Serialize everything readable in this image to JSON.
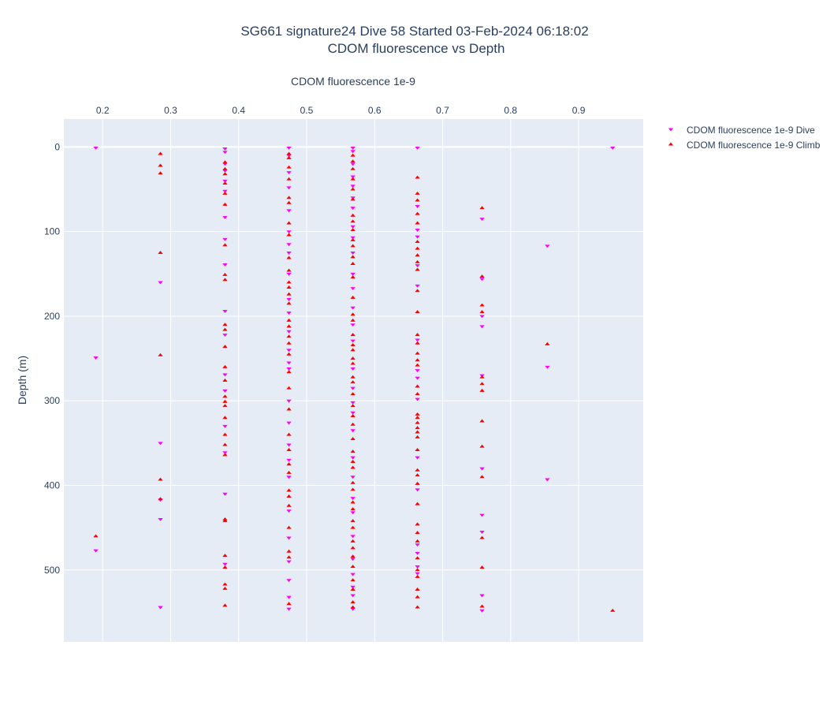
{
  "chart_data": {
    "type": "scatter",
    "title": "SG661 signature24 Dive 58 Started 03-Feb-2024 06:18:02",
    "subtitle": "CDOM fluorescence vs Depth",
    "xlabel": "CDOM fluorescence 1e-9",
    "ylabel": "Depth (m)",
    "xlim": [
      0.143,
      0.995
    ],
    "ylim": [
      585,
      -33
    ],
    "x_ticks": [
      0.2,
      0.3,
      0.4,
      0.5,
      0.6,
      0.7,
      0.8,
      0.9
    ],
    "x_tick_labels": [
      "0.2",
      "0.3",
      "0.4",
      "0.5",
      "0.6",
      "0.7",
      "0.8",
      "0.9"
    ],
    "y_ticks": [
      0,
      100,
      200,
      300,
      400,
      500
    ],
    "y_tick_labels": [
      "0",
      "100",
      "200",
      "300",
      "400",
      "500"
    ],
    "x_axis_position": "top",
    "y_reversed": true,
    "grid": true,
    "legend_position": "top-right",
    "background_color": "#e5ecf6",
    "series": [
      {
        "name": "CDOM fluorescence 1e-9 Dive",
        "marker": "triangle-down",
        "color": "#ff00ff",
        "points": [
          [
            0.19,
            1
          ],
          [
            0.19,
            249
          ],
          [
            0.19,
            477
          ],
          [
            0.285,
            160
          ],
          [
            0.285,
            350
          ],
          [
            0.285,
            417
          ],
          [
            0.285,
            440
          ],
          [
            0.285,
            544
          ],
          [
            0.38,
            2
          ],
          [
            0.38,
            6
          ],
          [
            0.38,
            20
          ],
          [
            0.38,
            28
          ],
          [
            0.38,
            40
          ],
          [
            0.38,
            52
          ],
          [
            0.38,
            83
          ],
          [
            0.38,
            109
          ],
          [
            0.38,
            139
          ],
          [
            0.38,
            194
          ],
          [
            0.38,
            222
          ],
          [
            0.38,
            269
          ],
          [
            0.38,
            288
          ],
          [
            0.38,
            330
          ],
          [
            0.38,
            361
          ],
          [
            0.38,
            410
          ],
          [
            0.38,
            493
          ],
          [
            0.474,
            1
          ],
          [
            0.474,
            10
          ],
          [
            0.474,
            30
          ],
          [
            0.474,
            48
          ],
          [
            0.474,
            75
          ],
          [
            0.474,
            100
          ],
          [
            0.474,
            115
          ],
          [
            0.474,
            125
          ],
          [
            0.474,
            150
          ],
          [
            0.474,
            180
          ],
          [
            0.474,
            196
          ],
          [
            0.474,
            218
          ],
          [
            0.474,
            240
          ],
          [
            0.474,
            255
          ],
          [
            0.474,
            262
          ],
          [
            0.474,
            300
          ],
          [
            0.474,
            326
          ],
          [
            0.474,
            352
          ],
          [
            0.474,
            370
          ],
          [
            0.474,
            390
          ],
          [
            0.474,
            430
          ],
          [
            0.474,
            462
          ],
          [
            0.474,
            490
          ],
          [
            0.474,
            512
          ],
          [
            0.474,
            532
          ],
          [
            0.474,
            546
          ],
          [
            0.568,
            1
          ],
          [
            0.568,
            5
          ],
          [
            0.568,
            20
          ],
          [
            0.568,
            35
          ],
          [
            0.568,
            46
          ],
          [
            0.568,
            60
          ],
          [
            0.568,
            72
          ],
          [
            0.568,
            94
          ],
          [
            0.568,
            107
          ],
          [
            0.568,
            125
          ],
          [
            0.568,
            150
          ],
          [
            0.568,
            167
          ],
          [
            0.568,
            190
          ],
          [
            0.568,
            210
          ],
          [
            0.568,
            229
          ],
          [
            0.568,
            262
          ],
          [
            0.568,
            285
          ],
          [
            0.568,
            302
          ],
          [
            0.568,
            314
          ],
          [
            0.568,
            335
          ],
          [
            0.568,
            367
          ],
          [
            0.568,
            390
          ],
          [
            0.568,
            415
          ],
          [
            0.568,
            432
          ],
          [
            0.568,
            460
          ],
          [
            0.568,
            487
          ],
          [
            0.568,
            505
          ],
          [
            0.568,
            520
          ],
          [
            0.568,
            530
          ],
          [
            0.568,
            546
          ],
          [
            0.663,
            1
          ],
          [
            0.663,
            70
          ],
          [
            0.663,
            98
          ],
          [
            0.663,
            106
          ],
          [
            0.663,
            140
          ],
          [
            0.663,
            164
          ],
          [
            0.663,
            228
          ],
          [
            0.663,
            264
          ],
          [
            0.663,
            273
          ],
          [
            0.663,
            298
          ],
          [
            0.663,
            367
          ],
          [
            0.663,
            405
          ],
          [
            0.663,
            470
          ],
          [
            0.663,
            480
          ],
          [
            0.663,
            496
          ],
          [
            0.663,
            504
          ],
          [
            0.758,
            85
          ],
          [
            0.758,
            156
          ],
          [
            0.758,
            200
          ],
          [
            0.758,
            212
          ],
          [
            0.758,
            270
          ],
          [
            0.758,
            380
          ],
          [
            0.758,
            435
          ],
          [
            0.758,
            455
          ],
          [
            0.758,
            530
          ],
          [
            0.758,
            548
          ],
          [
            0.854,
            117
          ],
          [
            0.854,
            260
          ],
          [
            0.854,
            393
          ],
          [
            0.95,
            1
          ]
        ]
      },
      {
        "name": "CDOM fluorescence 1e-9 Climb",
        "marker": "triangle-up",
        "color": "#ff0000",
        "points": [
          [
            0.19,
            460
          ],
          [
            0.285,
            8
          ],
          [
            0.285,
            22
          ],
          [
            0.285,
            31
          ],
          [
            0.285,
            125
          ],
          [
            0.285,
            246
          ],
          [
            0.285,
            393
          ],
          [
            0.285,
            416
          ],
          [
            0.38,
            18
          ],
          [
            0.38,
            26
          ],
          [
            0.38,
            32
          ],
          [
            0.38,
            43
          ],
          [
            0.38,
            55
          ],
          [
            0.38,
            68
          ],
          [
            0.38,
            116
          ],
          [
            0.38,
            151
          ],
          [
            0.38,
            157
          ],
          [
            0.38,
            210
          ],
          [
            0.38,
            216
          ],
          [
            0.38,
            236
          ],
          [
            0.38,
            260
          ],
          [
            0.38,
            276
          ],
          [
            0.38,
            295
          ],
          [
            0.38,
            301
          ],
          [
            0.38,
            306
          ],
          [
            0.38,
            320
          ],
          [
            0.38,
            340
          ],
          [
            0.38,
            352
          ],
          [
            0.38,
            364
          ],
          [
            0.38,
            440
          ],
          [
            0.38,
            442
          ],
          [
            0.38,
            483
          ],
          [
            0.38,
            497
          ],
          [
            0.38,
            517
          ],
          [
            0.38,
            522
          ],
          [
            0.38,
            542
          ],
          [
            0.474,
            8
          ],
          [
            0.474,
            13
          ],
          [
            0.474,
            24
          ],
          [
            0.474,
            38
          ],
          [
            0.474,
            60
          ],
          [
            0.474,
            66
          ],
          [
            0.474,
            90
          ],
          [
            0.474,
            104
          ],
          [
            0.474,
            131
          ],
          [
            0.474,
            146
          ],
          [
            0.474,
            160
          ],
          [
            0.474,
            166
          ],
          [
            0.474,
            174
          ],
          [
            0.474,
            185
          ],
          [
            0.474,
            205
          ],
          [
            0.474,
            212
          ],
          [
            0.474,
            224
          ],
          [
            0.474,
            232
          ],
          [
            0.474,
            245
          ],
          [
            0.474,
            266
          ],
          [
            0.474,
            285
          ],
          [
            0.474,
            310
          ],
          [
            0.474,
            340
          ],
          [
            0.474,
            358
          ],
          [
            0.474,
            375
          ],
          [
            0.474,
            385
          ],
          [
            0.474,
            406
          ],
          [
            0.474,
            413
          ],
          [
            0.474,
            424
          ],
          [
            0.474,
            450
          ],
          [
            0.474,
            478
          ],
          [
            0.474,
            485
          ],
          [
            0.474,
            540
          ],
          [
            0.568,
            10
          ],
          [
            0.568,
            17
          ],
          [
            0.568,
            26
          ],
          [
            0.568,
            38
          ],
          [
            0.568,
            50
          ],
          [
            0.568,
            62
          ],
          [
            0.568,
            81
          ],
          [
            0.568,
            88
          ],
          [
            0.568,
            98
          ],
          [
            0.568,
            110
          ],
          [
            0.568,
            117
          ],
          [
            0.568,
            130
          ],
          [
            0.568,
            138
          ],
          [
            0.568,
            154
          ],
          [
            0.568,
            178
          ],
          [
            0.568,
            198
          ],
          [
            0.568,
            205
          ],
          [
            0.568,
            222
          ],
          [
            0.568,
            234
          ],
          [
            0.568,
            240
          ],
          [
            0.568,
            250
          ],
          [
            0.568,
            256
          ],
          [
            0.568,
            272
          ],
          [
            0.568,
            278
          ],
          [
            0.568,
            292
          ],
          [
            0.568,
            306
          ],
          [
            0.568,
            318
          ],
          [
            0.568,
            328
          ],
          [
            0.568,
            345
          ],
          [
            0.568,
            360
          ],
          [
            0.568,
            372
          ],
          [
            0.568,
            379
          ],
          [
            0.568,
            397
          ],
          [
            0.568,
            405
          ],
          [
            0.568,
            420
          ],
          [
            0.568,
            428
          ],
          [
            0.568,
            442
          ],
          [
            0.568,
            450
          ],
          [
            0.568,
            466
          ],
          [
            0.568,
            474
          ],
          [
            0.568,
            484
          ],
          [
            0.568,
            496
          ],
          [
            0.568,
            512
          ],
          [
            0.568,
            523
          ],
          [
            0.568,
            538
          ],
          [
            0.568,
            544
          ],
          [
            0.663,
            36
          ],
          [
            0.663,
            55
          ],
          [
            0.663,
            63
          ],
          [
            0.663,
            79
          ],
          [
            0.663,
            90
          ],
          [
            0.663,
            112
          ],
          [
            0.663,
            120
          ],
          [
            0.663,
            128
          ],
          [
            0.663,
            136
          ],
          [
            0.663,
            145
          ],
          [
            0.663,
            170
          ],
          [
            0.663,
            195
          ],
          [
            0.663,
            222
          ],
          [
            0.663,
            232
          ],
          [
            0.663,
            244
          ],
          [
            0.663,
            252
          ],
          [
            0.663,
            258
          ],
          [
            0.663,
            283
          ],
          [
            0.663,
            292
          ],
          [
            0.663,
            316
          ],
          [
            0.663,
            320
          ],
          [
            0.663,
            326
          ],
          [
            0.663,
            332
          ],
          [
            0.663,
            337
          ],
          [
            0.663,
            343
          ],
          [
            0.663,
            358
          ],
          [
            0.663,
            382
          ],
          [
            0.663,
            388
          ],
          [
            0.663,
            398
          ],
          [
            0.663,
            422
          ],
          [
            0.663,
            446
          ],
          [
            0.663,
            456
          ],
          [
            0.663,
            466
          ],
          [
            0.663,
            486
          ],
          [
            0.663,
            500
          ],
          [
            0.663,
            508
          ],
          [
            0.663,
            523
          ],
          [
            0.663,
            532
          ],
          [
            0.663,
            544
          ],
          [
            0.758,
            72
          ],
          [
            0.758,
            153
          ],
          [
            0.758,
            187
          ],
          [
            0.758,
            195
          ],
          [
            0.758,
            272
          ],
          [
            0.758,
            280
          ],
          [
            0.758,
            288
          ],
          [
            0.758,
            324
          ],
          [
            0.758,
            354
          ],
          [
            0.758,
            390
          ],
          [
            0.758,
            462
          ],
          [
            0.758,
            497
          ],
          [
            0.758,
            543
          ],
          [
            0.854,
            233
          ],
          [
            0.95,
            548
          ]
        ]
      }
    ]
  }
}
